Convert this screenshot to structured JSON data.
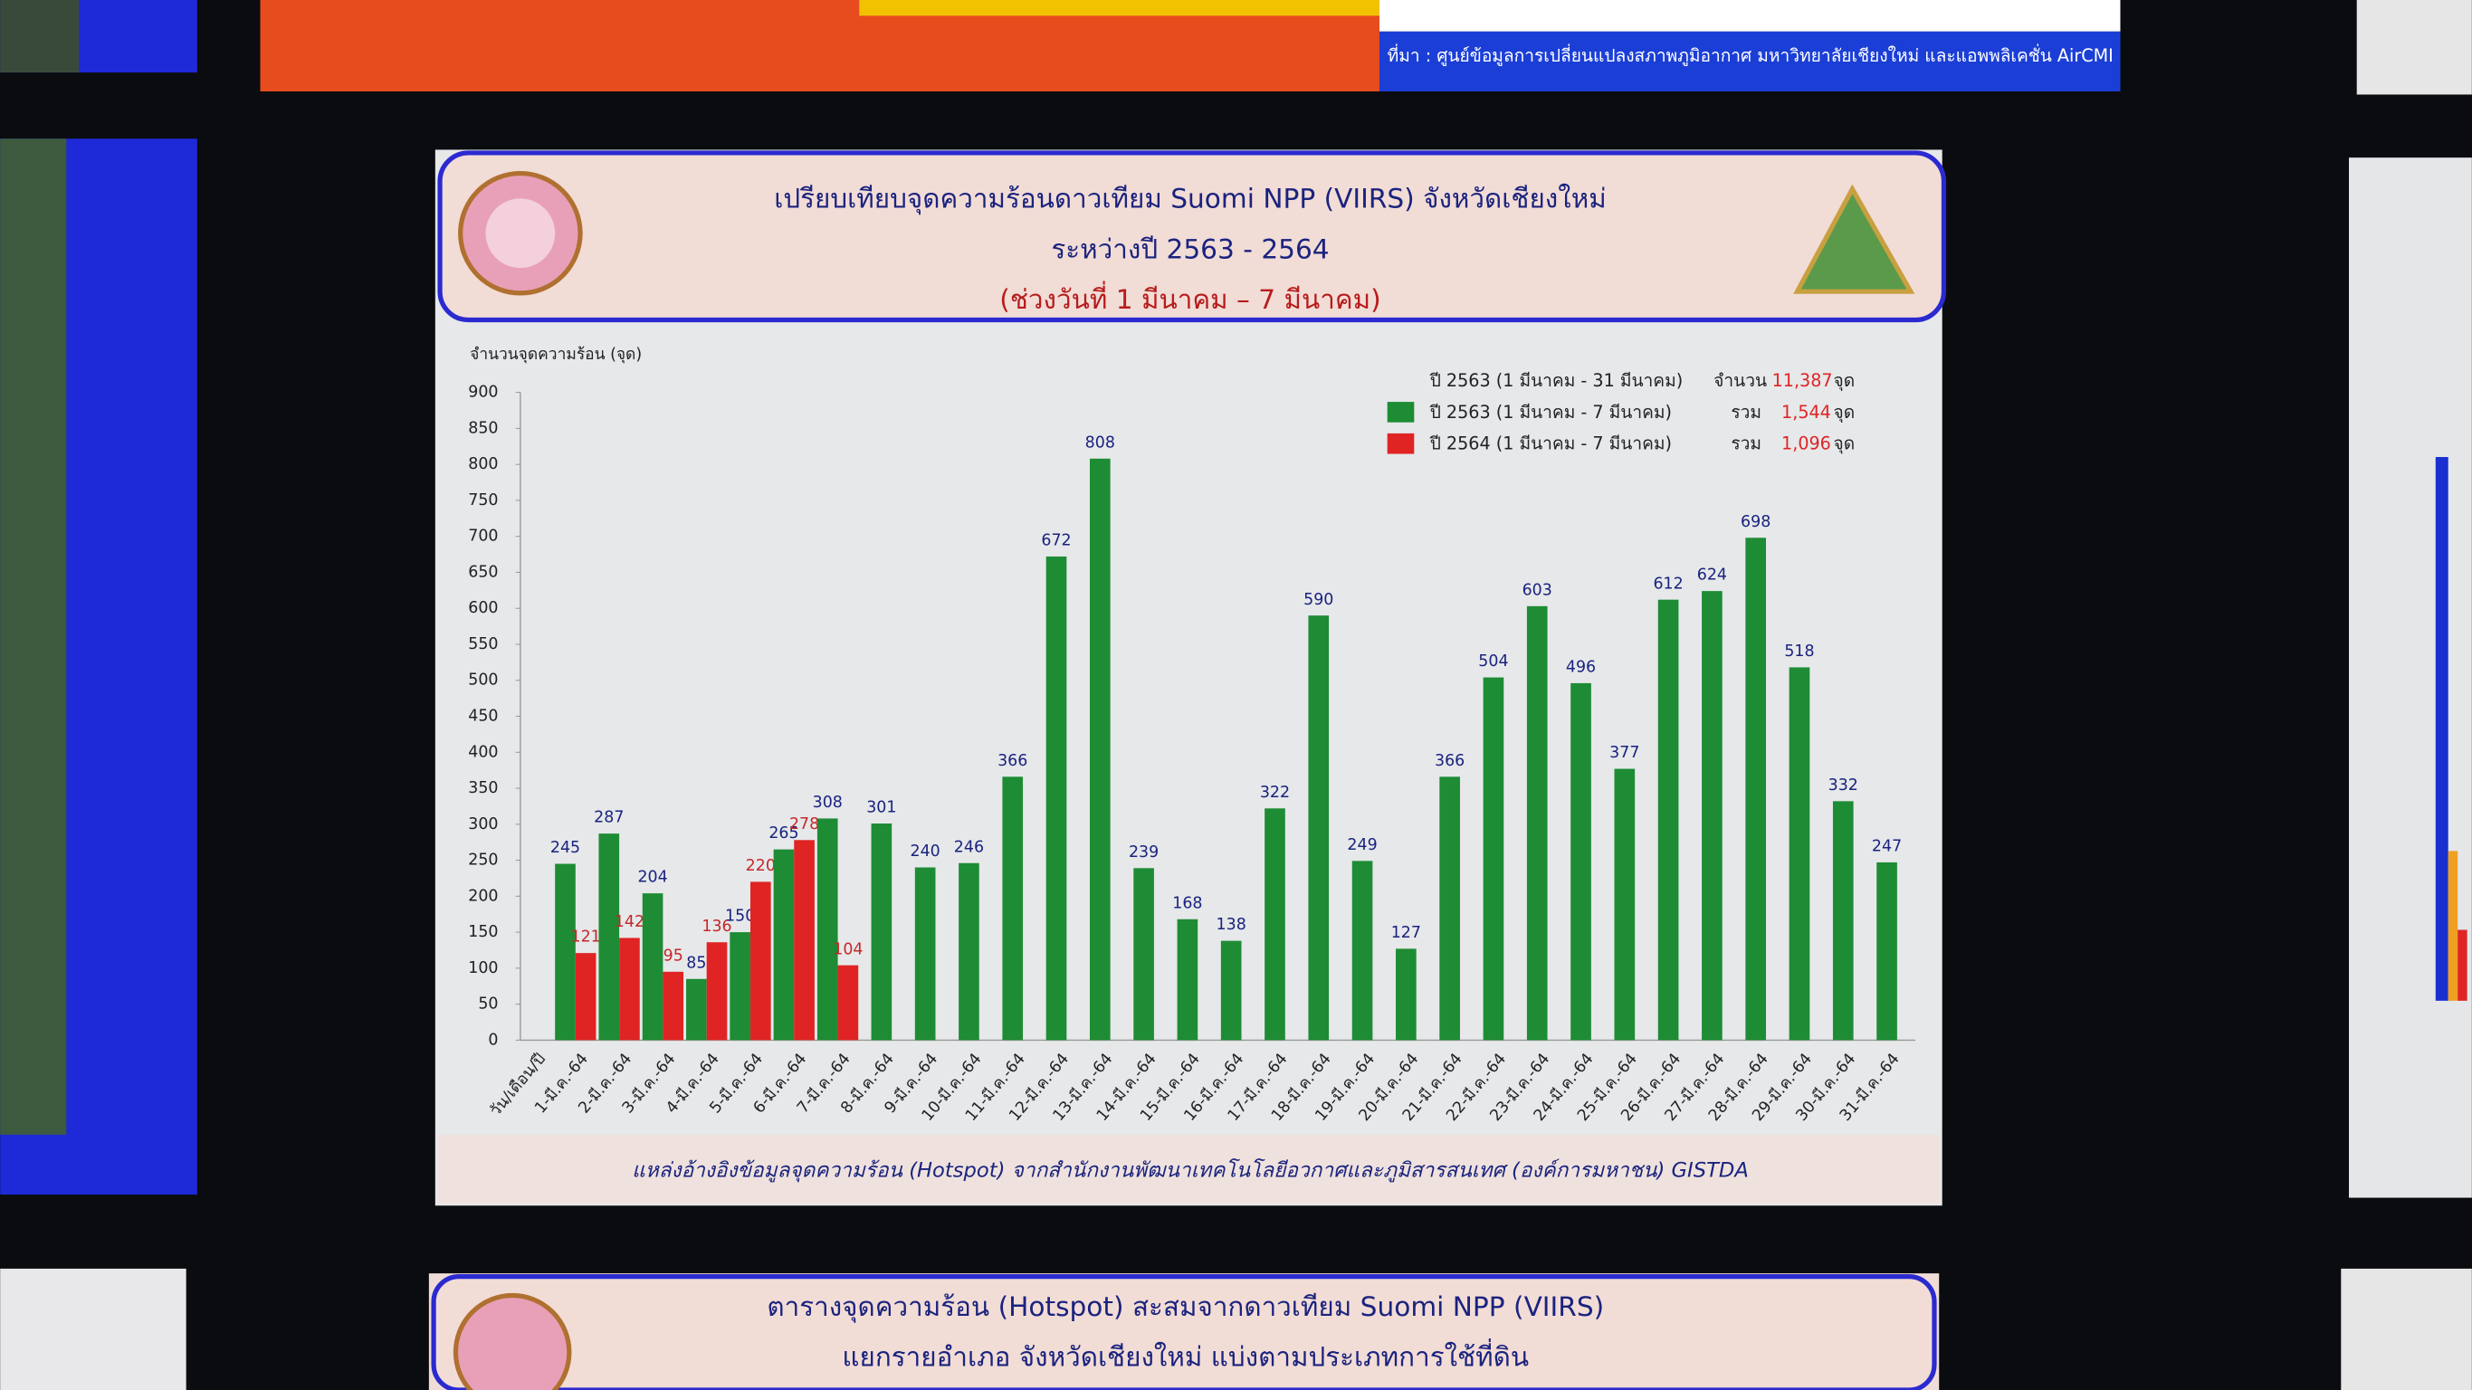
{
  "chart_data": {
    "type": "bar",
    "title": "เปรียบเทียบจุดความร้อนดาวเทียม Suomi NPP (VIIRS) จังหวัดเชียงใหม่",
    "subtitle": "ระหว่างปี 2563 - 2564",
    "subtitle2": "(ช่วงวันที่ 1 มีนาคม – 7 มีนาคม)",
    "ylabel": "จำนวนจุดความร้อน (จุด)",
    "xlabel": "วัน/เดือน/ปี",
    "categories": [
      "1-มี.ค.-64",
      "2-มี.ค.-64",
      "3-มี.ค.-64",
      "4-มี.ค.-64",
      "5-มี.ค.-64",
      "6-มี.ค.-64",
      "7-มี.ค.-64",
      "8-มี.ค.-64",
      "9-มี.ค.-64",
      "10-มี.ค.-64",
      "11-มี.ค.-64",
      "12-มี.ค.-64",
      "13-มี.ค.-64",
      "14-มี.ค.-64",
      "15-มี.ค.-64",
      "16-มี.ค.-64",
      "17-มี.ค.-64",
      "18-มี.ค.-64",
      "19-มี.ค.-64",
      "20-มี.ค.-64",
      "21-มี.ค.-64",
      "22-มี.ค.-64",
      "23-มี.ค.-64",
      "24-มี.ค.-64",
      "25-มี.ค.-64",
      "26-มี.ค.-64",
      "27-มี.ค.-64",
      "28-มี.ค.-64",
      "29-มี.ค.-64",
      "30-มี.ค.-64",
      "31-มี.ค.-64"
    ],
    "series": [
      {
        "name": "ปี 2563 (1 มีนาคม - 7 มีนาคม)",
        "color": "#1e8c34",
        "label_color": "#1a237e",
        "total_prefix": "รวม",
        "total": "1,544",
        "unit": "จุด",
        "values": [
          245,
          287,
          204,
          85,
          150,
          265,
          308,
          301,
          240,
          246,
          366,
          672,
          808,
          239,
          168,
          138,
          322,
          590,
          249,
          127,
          366,
          504,
          603,
          496,
          377,
          612,
          624,
          698,
          518,
          332,
          247
        ]
      },
      {
        "name": "ปี 2564 (1 มีนาคม - 7 มีนาคม)",
        "color": "#e02424",
        "label_color": "#c62828",
        "total_prefix": "รวม",
        "total": "1,096",
        "unit": "จุด",
        "values": [
          121,
          142,
          95,
          136,
          220,
          278,
          104,
          null,
          null,
          null,
          null,
          null,
          null,
          null,
          null,
          null,
          null,
          null,
          null,
          null,
          null,
          null,
          null,
          null,
          null,
          null,
          null,
          null,
          null,
          null,
          null
        ]
      }
    ],
    "legend_note": {
      "label": "ปี 2563 (1 มีนาคม - 31 มีนาคม)",
      "prefix": "จำนวน",
      "total": "11,387",
      "unit": "จุด"
    },
    "ylim": [
      0,
      900
    ],
    "yticks": [
      0,
      50,
      100,
      150,
      200,
      250,
      300,
      350,
      400,
      450,
      500,
      550,
      600,
      650,
      700,
      750,
      800,
      850,
      900
    ],
    "source": "แหล่งอ้างอิงข้อมูลจุดความร้อน (Hotspot) จากสำนักงานพัฒนาเทคโนโลยีอวกาศและภูมิสารสนเทศ (องค์การมหาชน) GISTDA"
  },
  "surroundings": {
    "top_banner": "ที่มา : ศูนย์ข้อมูลการเปลี่ยนแปลงสภาพภูมิอากาศ มหาวิทยาลัยเชียงใหม่ และแอพพลิเคชั่น AirCMI",
    "bottom_title": "ตารางจุดความร้อน (Hotspot) สะสมจากดาวเทียม Suomi NPP (VIIRS)",
    "bottom_subtitle": "แยกรายอำเภอ จังหวัดเชียงใหม่ แบ่งตามประเภทการใช้ที่ดิน"
  }
}
